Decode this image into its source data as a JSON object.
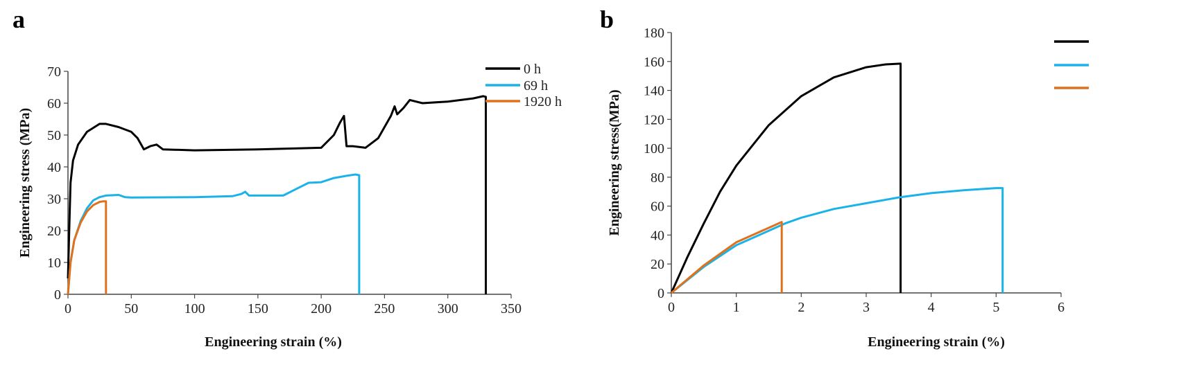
{
  "chart_data": [
    {
      "panel_label": "a",
      "type": "line",
      "xlabel": "Engineering strain (%)",
      "ylabel": "Engineering stress  (MPa)",
      "xlim": [
        0,
        350
      ],
      "ylim": [
        0,
        70
      ],
      "xticks": [
        0,
        50,
        100,
        150,
        200,
        250,
        300,
        350
      ],
      "yticks": [
        0,
        10,
        20,
        30,
        40,
        50,
        60,
        70
      ],
      "grid": false,
      "legend": "top-right",
      "series": [
        {
          "name": "0 h",
          "color": "#000000",
          "x": [
            0,
            1,
            2,
            4,
            8,
            15,
            25,
            30,
            40,
            50,
            55,
            60,
            65,
            70,
            75,
            100,
            150,
            200,
            210,
            215,
            218,
            220,
            225,
            235,
            245,
            255,
            258,
            260,
            265,
            270,
            280,
            300,
            320,
            328,
            330,
            330
          ],
          "y": [
            5,
            20,
            35,
            42,
            47,
            51,
            53.5,
            53.5,
            52.5,
            51,
            49,
            45.5,
            46.5,
            47,
            45.5,
            45.2,
            45.5,
            46,
            50,
            54,
            56,
            46.5,
            46.5,
            46,
            49,
            56,
            59,
            56.5,
            58.5,
            61,
            60,
            60.5,
            61.5,
            62.2,
            62,
            0
          ]
        },
        {
          "name": "69 h",
          "color": "#1ab2e8",
          "x": [
            0,
            2,
            5,
            10,
            15,
            20,
            25,
            30,
            40,
            45,
            50,
            100,
            130,
            137,
            140,
            143,
            170,
            180,
            190,
            200,
            210,
            220,
            227,
            230,
            230
          ],
          "y": [
            0,
            10,
            17,
            23,
            27,
            29.5,
            30.5,
            31,
            31.2,
            30.5,
            30.4,
            30.5,
            30.8,
            31.5,
            32.2,
            31,
            31,
            33,
            35,
            35.2,
            36.5,
            37.2,
            37.6,
            37.4,
            0
          ]
        },
        {
          "name": "1920 h",
          "color": "#e0711c",
          "x": [
            0,
            2,
            5,
            10,
            15,
            20,
            25,
            28,
            30,
            30
          ],
          "y": [
            0,
            10,
            17,
            22.5,
            26,
            28,
            29,
            29.2,
            29.2,
            0
          ]
        }
      ]
    },
    {
      "panel_label": "b",
      "type": "line",
      "xlabel": "Engineering strain (%)",
      "ylabel": "Engineering stress(MPa)",
      "xlim": [
        0,
        6
      ],
      "ylim": [
        0,
        180
      ],
      "xticks": [
        0,
        1,
        2,
        3,
        4,
        5,
        6
      ],
      "yticks": [
        0,
        20,
        40,
        60,
        80,
        100,
        120,
        140,
        160,
        180
      ],
      "grid": false,
      "legend": "top-right",
      "series": [
        {
          "color": "#000000",
          "x": [
            0,
            0.25,
            0.5,
            0.75,
            1,
            1.5,
            2,
            2.5,
            3,
            3.3,
            3.53,
            3.53
          ],
          "y": [
            0,
            25,
            48,
            70,
            88,
            116,
            136,
            149,
            156,
            158,
            158.5,
            0
          ]
        },
        {
          "color": "#1ab2e8",
          "x": [
            0,
            0.5,
            1,
            1.5,
            1.75,
            2,
            2.5,
            3,
            3.5,
            4,
            4.5,
            5,
            5.1,
            5.1
          ],
          "y": [
            0,
            18,
            33,
            43,
            48,
            52,
            58,
            62,
            66,
            69,
            71,
            72.5,
            72.5,
            0
          ]
        },
        {
          "color": "#e0711c",
          "x": [
            0,
            0.5,
            1,
            1.5,
            1.7,
            1.7
          ],
          "y": [
            0,
            19,
            35,
            45,
            49,
            0
          ]
        }
      ]
    }
  ]
}
